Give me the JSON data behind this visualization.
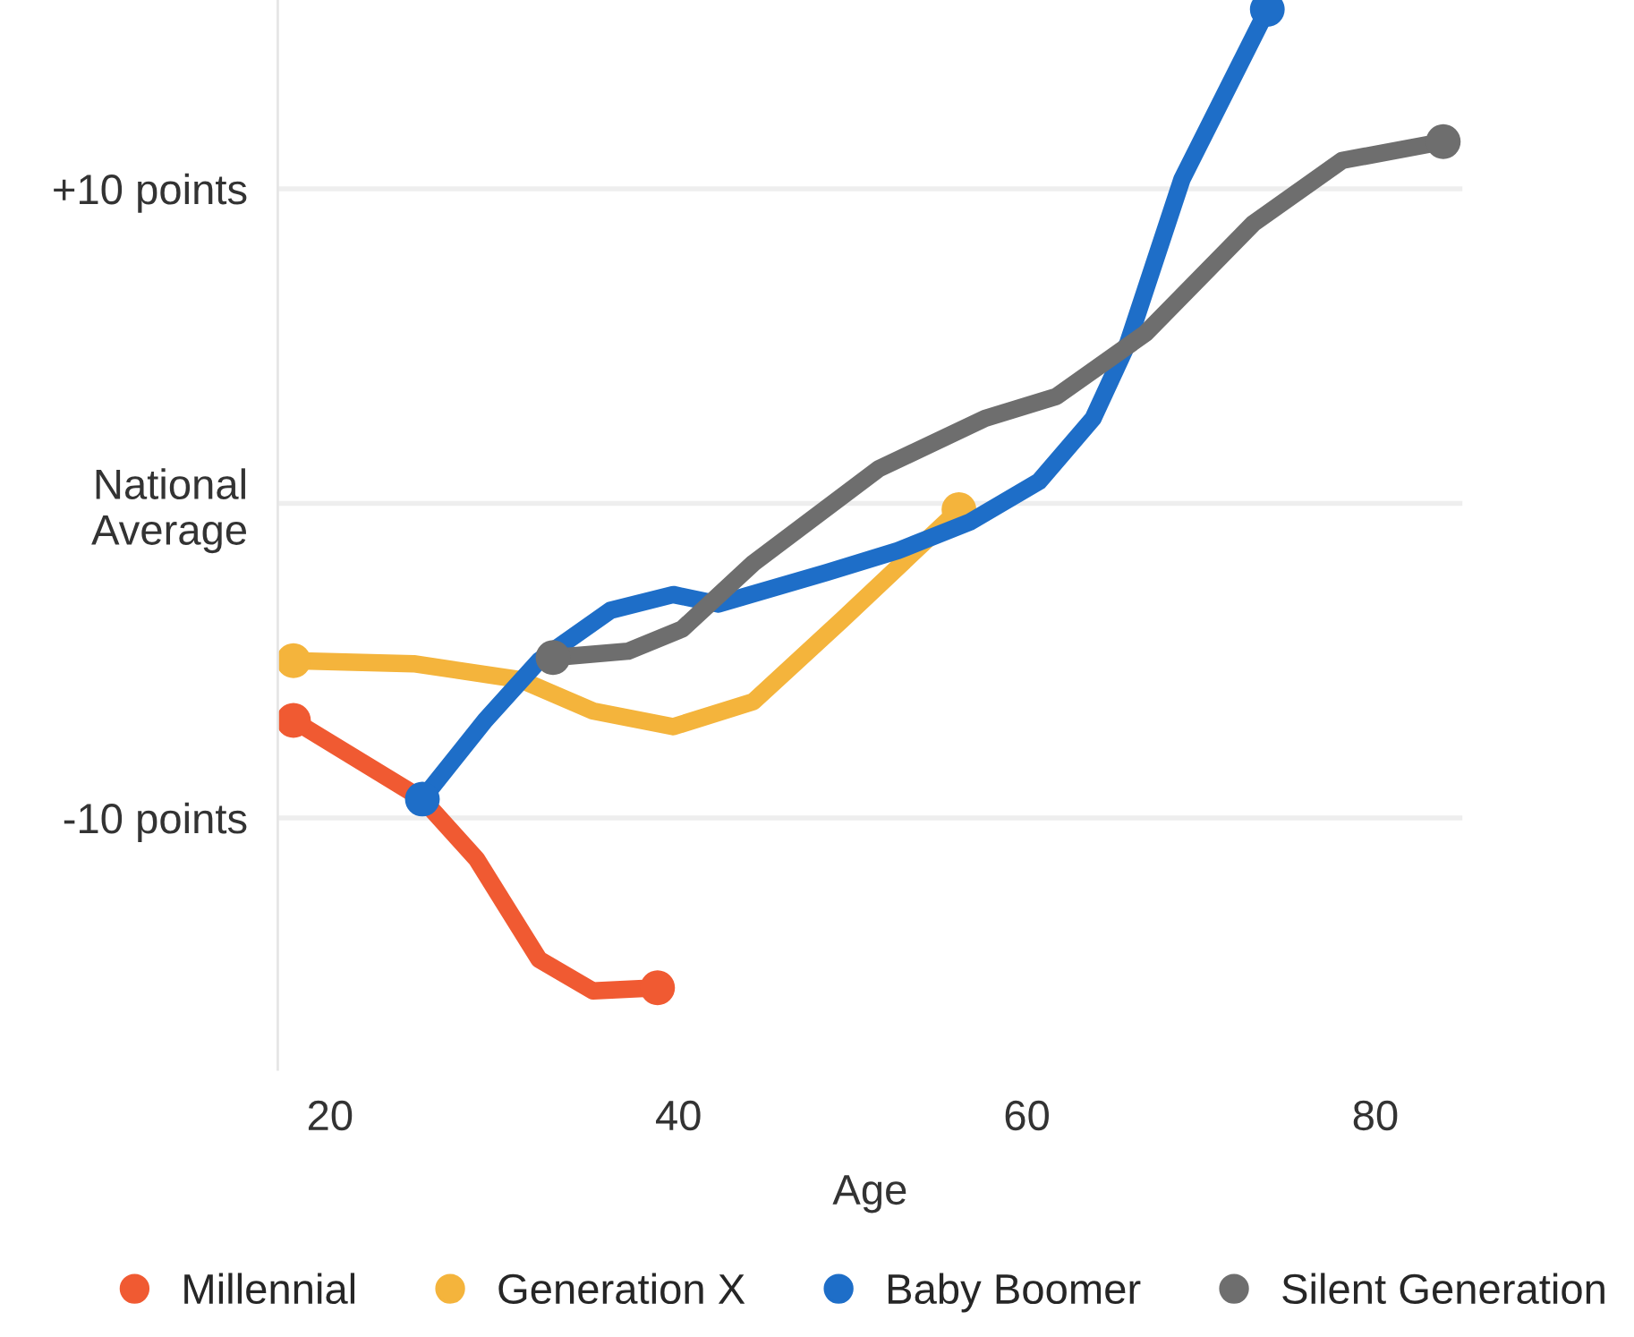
{
  "chart_data": {
    "type": "line",
    "xlabel": "Age",
    "xlim": [
      17,
      85
    ],
    "xticks": [
      20,
      40,
      60,
      80
    ],
    "ylim": [
      -18,
      16
    ],
    "yticks": [
      {
        "value": 10,
        "label": "+10 points"
      },
      {
        "value": 0,
        "label": "National\nAverage"
      },
      {
        "value": -10,
        "label": "-10 points"
      }
    ],
    "grid": "y",
    "legend": "bottom",
    "line_style": "solid",
    "series": [
      {
        "name": "Millennial",
        "color": "#f05a32",
        "x": [
          17.9,
          25.3,
          28.4,
          32,
          35.1,
          38.8
        ],
        "values": [
          -6.9,
          -9.4,
          -11.3,
          -14.5,
          -15.5,
          -15.4
        ]
      },
      {
        "name": "Generation X",
        "color": "#f4b43c",
        "x": [
          17.9,
          24.8,
          30.9,
          35.1,
          39.7,
          44.3,
          49.4,
          56.1
        ],
        "values": [
          -5.0,
          -5.1,
          -5.6,
          -6.6,
          -7.1,
          -6.3,
          -3.7,
          -0.2
        ]
      },
      {
        "name": "Baby Boomer",
        "color": "#1e6ec8",
        "x": [
          25.3,
          28.9,
          32,
          36.1,
          39.7,
          42.3,
          48.5,
          52.6,
          56.7,
          60.7,
          63.8,
          65.8,
          68.9,
          73.8
        ],
        "values": [
          -9.4,
          -6.9,
          -5.0,
          -3.4,
          -2.9,
          -3.2,
          -2.2,
          -1.5,
          -0.6,
          0.7,
          2.7,
          5.1,
          10.3,
          15.7
        ]
      },
      {
        "name": "Silent Generation",
        "color": "#6e6e6e",
        "x": [
          32.8,
          37.1,
          40.2,
          44.3,
          51.5,
          57.6,
          61.7,
          66.8,
          73,
          78.1,
          83.9
        ],
        "values": [
          -4.9,
          -4.7,
          -4.0,
          -1.9,
          1.1,
          2.7,
          3.4,
          5.4,
          8.9,
          10.9,
          11.5
        ]
      }
    ]
  }
}
